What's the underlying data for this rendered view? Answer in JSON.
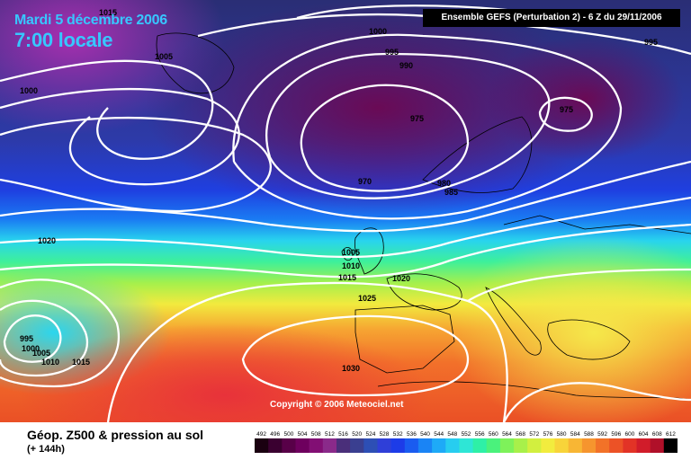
{
  "header": {
    "date": "Mardi 5 décembre 2006",
    "time": "7:00 locale",
    "run_info": "Ensemble GEFS (Perturbation 2) - 6 Z du 29/11/2006"
  },
  "copyright": "Copyright © 2006 Meteociel.net",
  "legend": {
    "title": "Géop. Z500 & pression au sol",
    "subtitle": "(+ 144h)",
    "scale_values": [
      "492",
      "496",
      "500",
      "504",
      "508",
      "512",
      "516",
      "520",
      "524",
      "528",
      "532",
      "536",
      "540",
      "544",
      "548",
      "552",
      "556",
      "560",
      "564",
      "568",
      "572",
      "576",
      "580",
      "584",
      "588",
      "592",
      "596",
      "600",
      "604",
      "608",
      "612"
    ],
    "scale_colors": [
      "#1a0010",
      "#3a0030",
      "#580048",
      "#6e005e",
      "#820f74",
      "#8a2a8a",
      "#4a2f7a",
      "#3a3f90",
      "#2d4fb5",
      "#2f3fd8",
      "#1d3ce8",
      "#1a5cf0",
      "#1a84f5",
      "#1eaaf7",
      "#27cdf0",
      "#2ee6d6",
      "#2ef0a7",
      "#4af27c",
      "#7ef25a",
      "#a8f04a",
      "#d2ef3f",
      "#f2ec3e",
      "#f8d43a",
      "#f8b634",
      "#f6952e",
      "#f27228",
      "#ec5226",
      "#e23326",
      "#d11c2a",
      "#b01029",
      "#000000"
    ]
  },
  "map": {
    "isobar_labels": [
      {
        "text": "1015"
      },
      {
        "text": "1005"
      },
      {
        "text": "1000"
      },
      {
        "text": "1000"
      },
      {
        "text": "995"
      },
      {
        "text": "990"
      },
      {
        "text": "995"
      },
      {
        "text": "975"
      },
      {
        "text": "975"
      },
      {
        "text": "970"
      },
      {
        "text": "980"
      },
      {
        "text": "985"
      },
      {
        "text": "1020"
      },
      {
        "text": "1005"
      },
      {
        "text": "1010"
      },
      {
        "text": "1015"
      },
      {
        "text": "1020"
      },
      {
        "text": "1025"
      },
      {
        "text": "995"
      },
      {
        "text": "1000"
      },
      {
        "text": "1005"
      },
      {
        "text": "1010"
      },
      {
        "text": "1015"
      },
      {
        "text": "1030"
      }
    ]
  }
}
